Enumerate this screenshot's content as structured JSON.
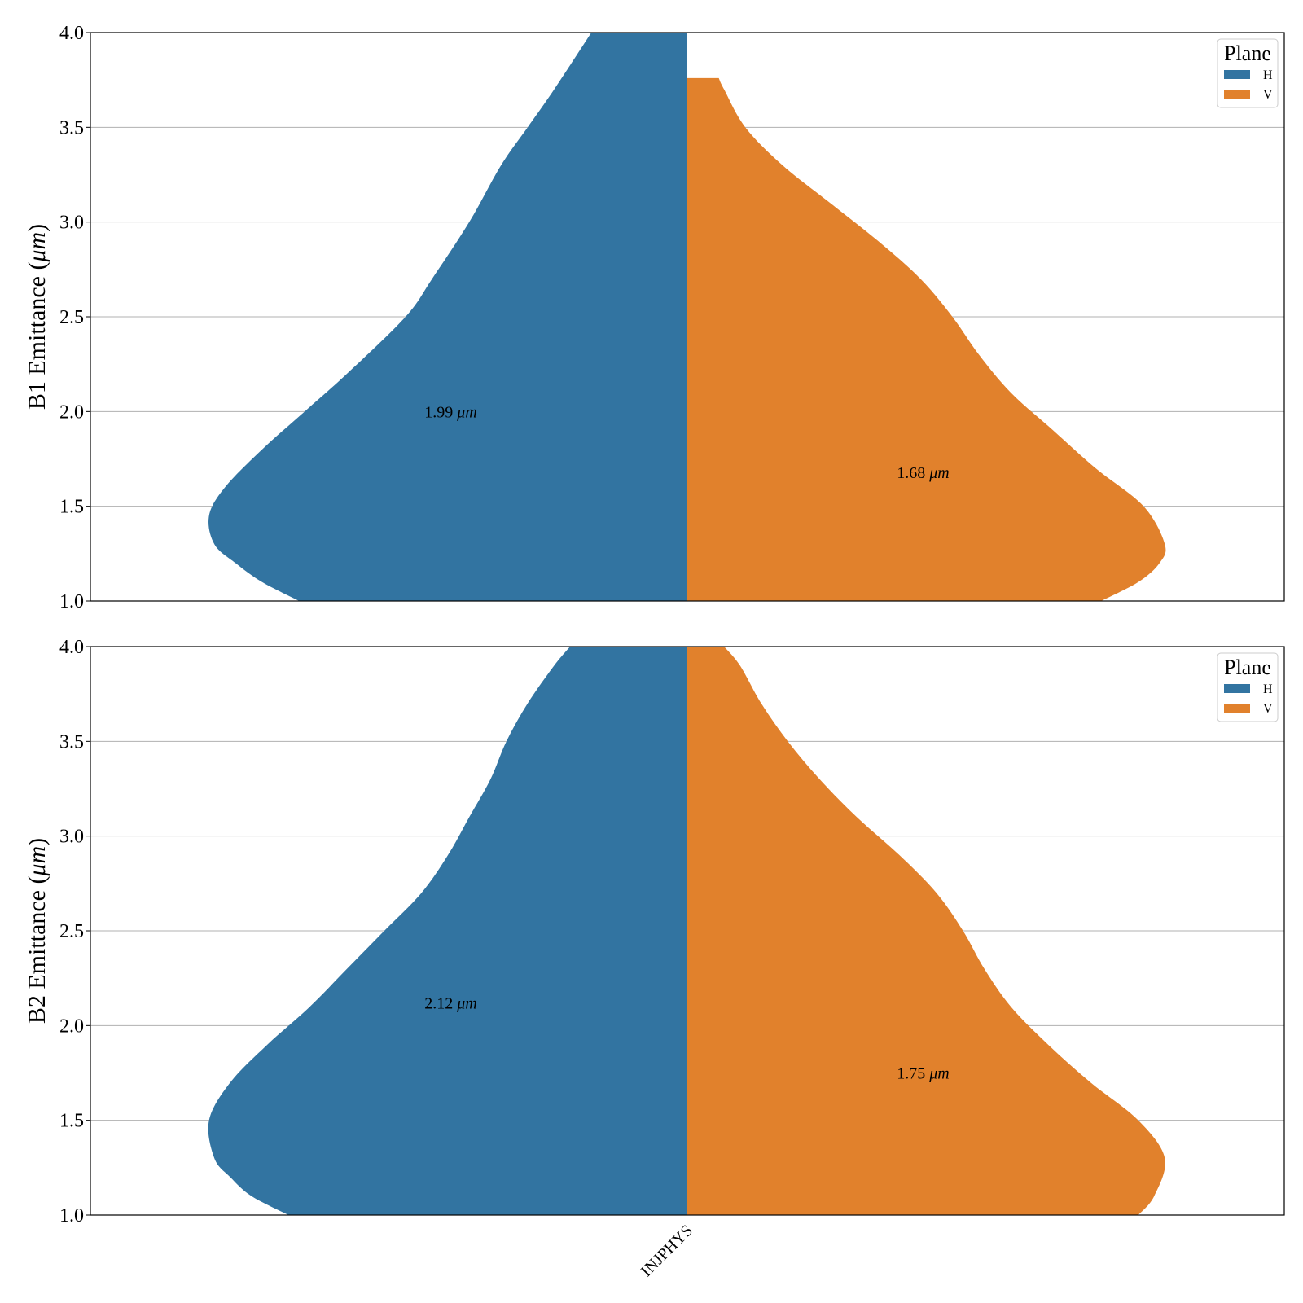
{
  "chart_data": [
    {
      "type": "violin",
      "ylabel": "B1 Emittance (μm)",
      "ylabel_text": "B1 Emittance (",
      "ylabel_unit": "μm",
      "ylabel_close": ")",
      "ylim": [
        1.0,
        4.0
      ],
      "yticks": [
        "1.0",
        "1.5",
        "2.0",
        "2.5",
        "3.0",
        "3.5",
        "4.0"
      ],
      "ytick_values": [
        1.0,
        1.5,
        2.0,
        2.5,
        3.0,
        3.5,
        4.0
      ],
      "grid": "y",
      "categories": [
        "INJPHYS"
      ],
      "show_xticklabels": false,
      "legend": {
        "title": "Plane",
        "placement": "upper-right",
        "items": [
          "H",
          "V"
        ]
      },
      "series": [
        {
          "name": "H",
          "color": "#3274a1",
          "side": "left",
          "annotation": "1.99",
          "annotation_unit": "μm",
          "annotation_y": 2.0,
          "profile": [
            [
              1.0,
              0.73
            ],
            [
              1.1,
              0.8
            ],
            [
              1.2,
              0.85
            ],
            [
              1.3,
              0.89
            ],
            [
              1.45,
              0.9
            ],
            [
              1.6,
              0.87
            ],
            [
              1.8,
              0.8
            ],
            [
              2.0,
              0.72
            ],
            [
              2.2,
              0.64
            ],
            [
              2.5,
              0.53
            ],
            [
              2.7,
              0.48
            ],
            [
              3.0,
              0.41
            ],
            [
              3.3,
              0.35
            ],
            [
              3.5,
              0.3
            ],
            [
              3.7,
              0.25
            ],
            [
              4.0,
              0.18
            ]
          ]
        },
        {
          "name": "V",
          "color": "#e1812c",
          "side": "right",
          "annotation": "1.68",
          "annotation_unit": "μm",
          "annotation_y": 1.68,
          "top": 3.76,
          "profile": [
            [
              1.0,
              0.78
            ],
            [
              1.1,
              0.85
            ],
            [
              1.2,
              0.89
            ],
            [
              1.3,
              0.9
            ],
            [
              1.5,
              0.86
            ],
            [
              1.7,
              0.77
            ],
            [
              1.9,
              0.69
            ],
            [
              2.1,
              0.61
            ],
            [
              2.3,
              0.55
            ],
            [
              2.5,
              0.5
            ],
            [
              2.7,
              0.44
            ],
            [
              2.9,
              0.36
            ],
            [
              3.1,
              0.27
            ],
            [
              3.3,
              0.18
            ],
            [
              3.5,
              0.11
            ],
            [
              3.7,
              0.07
            ],
            [
              3.76,
              0.06
            ]
          ]
        }
      ]
    },
    {
      "type": "violin",
      "ylabel": "B2 Emittance (μm)",
      "ylabel_text": "B2 Emittance (",
      "ylabel_unit": "μm",
      "ylabel_close": ")",
      "ylim": [
        1.0,
        4.0
      ],
      "yticks": [
        "1.0",
        "1.5",
        "2.0",
        "2.5",
        "3.0",
        "3.5",
        "4.0"
      ],
      "ytick_values": [
        1.0,
        1.5,
        2.0,
        2.5,
        3.0,
        3.5,
        4.0
      ],
      "grid": "y",
      "categories": [
        "INJPHYS"
      ],
      "show_xticklabels": true,
      "legend": {
        "title": "Plane",
        "placement": "upper-right",
        "items": [
          "H",
          "V"
        ]
      },
      "series": [
        {
          "name": "H",
          "color": "#3274a1",
          "side": "left",
          "annotation": "2.12",
          "annotation_unit": "μm",
          "annotation_y": 2.12,
          "profile": [
            [
              1.0,
              0.75
            ],
            [
              1.1,
              0.82
            ],
            [
              1.2,
              0.86
            ],
            [
              1.3,
              0.89
            ],
            [
              1.5,
              0.9
            ],
            [
              1.7,
              0.86
            ],
            [
              1.9,
              0.79
            ],
            [
              2.1,
              0.71
            ],
            [
              2.3,
              0.64
            ],
            [
              2.5,
              0.57
            ],
            [
              2.7,
              0.5
            ],
            [
              2.9,
              0.45
            ],
            [
              3.1,
              0.41
            ],
            [
              3.3,
              0.37
            ],
            [
              3.5,
              0.34
            ],
            [
              3.7,
              0.3
            ],
            [
              3.9,
              0.25
            ],
            [
              4.0,
              0.22
            ]
          ]
        },
        {
          "name": "V",
          "color": "#e1812c",
          "side": "right",
          "annotation": "1.75",
          "annotation_unit": "μm",
          "annotation_y": 1.75,
          "profile": [
            [
              1.0,
              0.85
            ],
            [
              1.1,
              0.88
            ],
            [
              1.3,
              0.9
            ],
            [
              1.5,
              0.85
            ],
            [
              1.7,
              0.76
            ],
            [
              1.9,
              0.68
            ],
            [
              2.1,
              0.61
            ],
            [
              2.3,
              0.56
            ],
            [
              2.5,
              0.52
            ],
            [
              2.7,
              0.47
            ],
            [
              2.9,
              0.4
            ],
            [
              3.1,
              0.32
            ],
            [
              3.3,
              0.25
            ],
            [
              3.5,
              0.19
            ],
            [
              3.7,
              0.14
            ],
            [
              3.9,
              0.1
            ],
            [
              4.0,
              0.07
            ]
          ]
        }
      ]
    }
  ]
}
